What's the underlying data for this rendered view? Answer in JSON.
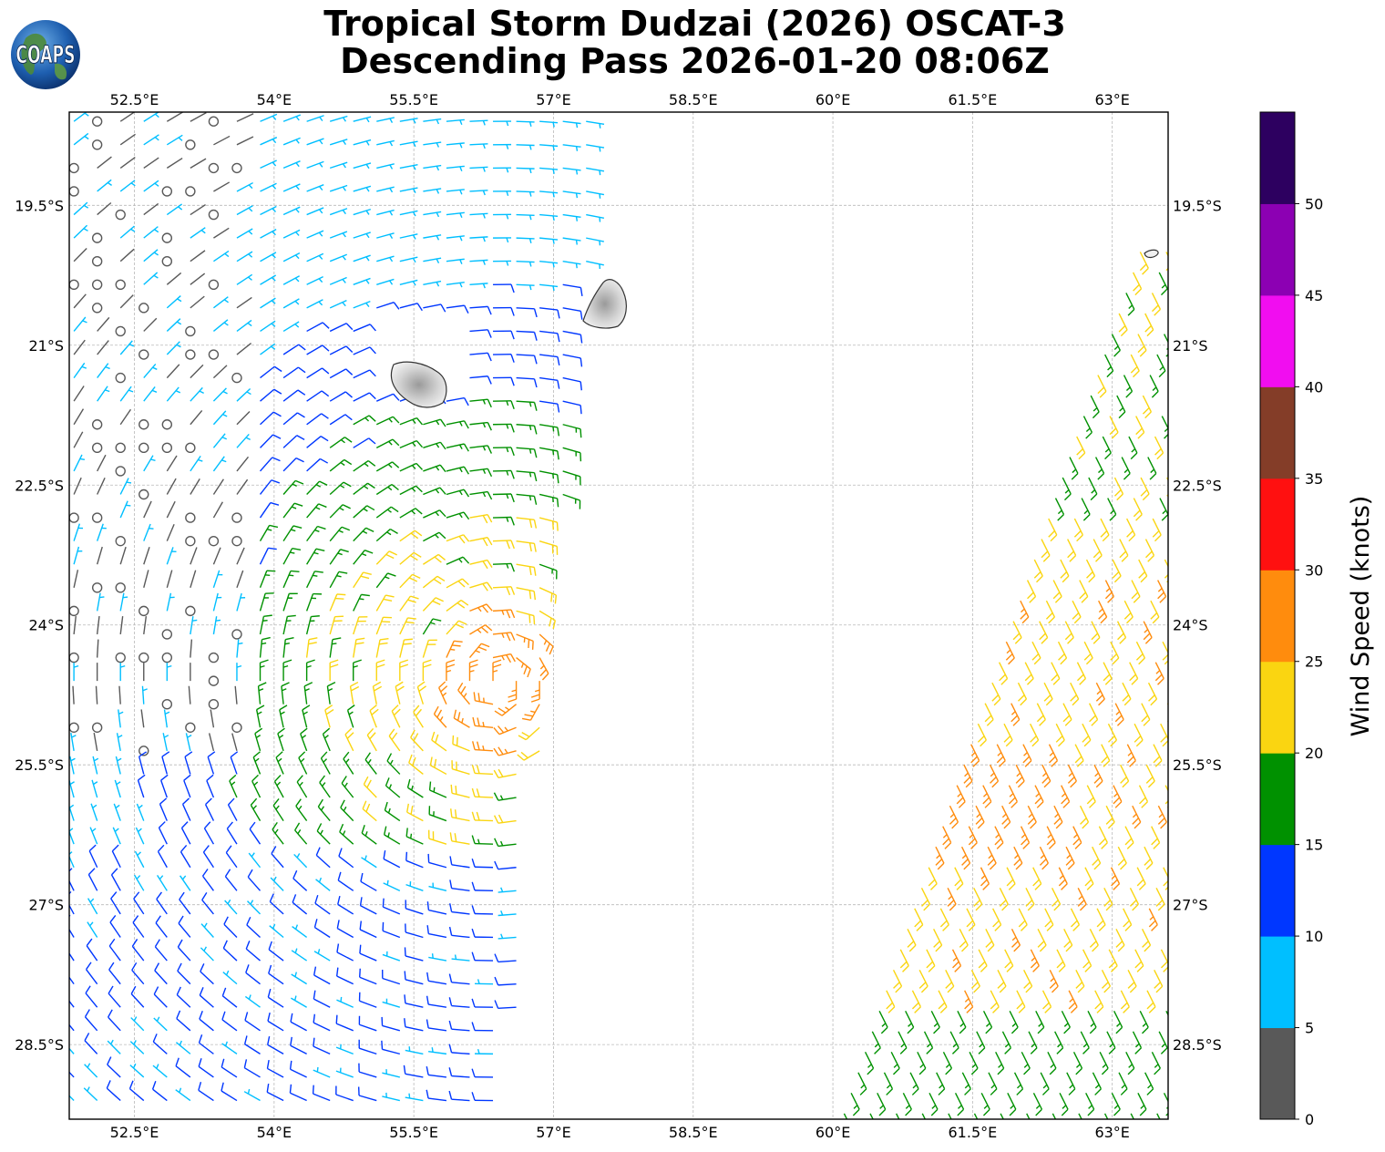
{
  "title": {
    "line1": "Tropical Storm Dudzai (2026) OSCAT-3",
    "line2": "Descending Pass 2026-01-20 08:06Z"
  },
  "logo": {
    "text": "COAPS",
    "icon": "globe-logo-icon"
  },
  "map": {
    "lon_range": [
      51.8,
      63.6
    ],
    "lat_range": [
      -29.3,
      -18.5
    ],
    "lon_ticks": [
      "52.5°E",
      "54°E",
      "55.5°E",
      "57°E",
      "58.5°E",
      "60°E",
      "61.5°E",
      "63°E"
    ],
    "lat_ticks": [
      "19.5°S",
      "21°S",
      "22.5°S",
      "24°S",
      "25.5°S",
      "27°S",
      "28.5°S"
    ],
    "islands": [
      "reunion-island",
      "mauritius-island",
      "rodrigues-island"
    ],
    "storm_center": {
      "lon": 56.4,
      "lat": -24.6
    }
  },
  "colorbar": {
    "label": "Wind Speed (knots)",
    "ticks": [
      "0",
      "5",
      "10",
      "15",
      "20",
      "25",
      "30",
      "35",
      "40",
      "45",
      "50"
    ],
    "colors": [
      "#595959",
      "#00bfff",
      "#0037ff",
      "#009100",
      "#fad511",
      "#ff8c0d",
      "#ff1010",
      "#843d28",
      "#f10df0",
      "#8c00b3",
      "#2d0060"
    ]
  }
}
